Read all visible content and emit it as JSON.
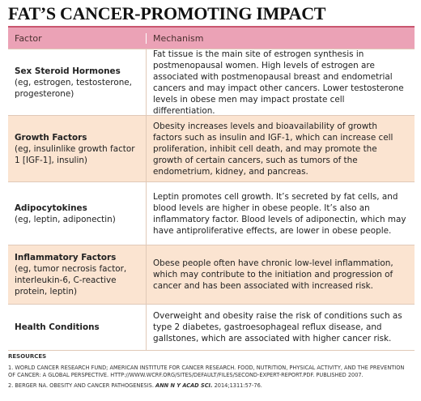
{
  "header": {
    "title": "FAT’S CANCER-PROMOTING IMPACT"
  },
  "table": {
    "columns": [
      "Factor",
      "Mechanism"
    ],
    "rows": [
      {
        "factor": "Sex Steroid Hormones",
        "detail": "(eg, estrogen, testosterone, progesterone)",
        "mechanism": "Fat tissue is the main site of estrogen synthesis in postmenopausal women. High levels of estrogen are associated with postmenopausal breast and endometrial cancers and may impact other cancers. Lower testosterone levels in obese men may impact prostate cell differentiation."
      },
      {
        "factor": "Growth Factors",
        "detail": "(eg, insulinlike growth factor 1 [IGF-1], insulin)",
        "mechanism": "Obesity increases levels and bioavailability of growth factors such as insulin and IGF-1, which can increase cell proliferation, inhibit cell death, and may promote the growth of certain cancers, such as tumors of the endometrium, kidney, and pancreas."
      },
      {
        "factor": "Adipocytokines",
        "detail": "(eg, leptin, adiponectin)",
        "mechanism": "Leptin promotes cell growth. It’s secreted by fat cells, and blood levels are higher in obese people. It’s also an inflammatory factor. Blood levels of adiponectin, which may have antiproliferative effects, are lower in obese people."
      },
      {
        "factor": "Inflammatory Factors",
        "detail": "(eg, tumor necrosis factor, interleukin-6, C-reactive protein, leptin)",
        "mechanism": "Obese people often have chronic low-level inflammation, which may contribute to the initiation and progression of cancer and has been associated with increased risk."
      },
      {
        "factor": "Health Conditions",
        "detail": null,
        "mechanism": "Overweight and obesity raise the risk of conditions such as type 2 diabetes, gastroesophageal reflux disease, and gallstones, which are associated with higher cancer risk."
      }
    ]
  },
  "resources": {
    "heading": "RESOURCES",
    "items": [
      {
        "text": "1. WORLD CANCER RESEARCH FUND; AMERICAN INSTITUTE FOR CANCER RESEARCH. FOOD, NUTRITION, PHYSICAL ACTIVITY, AND THE PREVENTION OF CANCER: A GLOBAL PERSPECTIVE. HTTP://WWW.WCRF.ORG/SITES/DEFAULT/FILES/SECOND-EXPERT-REPORT.PDF. PUBLISHED 2007."
      },
      {
        "text": "2. BERGER NA. OBESITY AND CANCER PATHOGENESIS. ",
        "journal": "ANN N Y ACAD SCI.",
        "tail": " 2014;1311:57-76."
      }
    ]
  }
}
